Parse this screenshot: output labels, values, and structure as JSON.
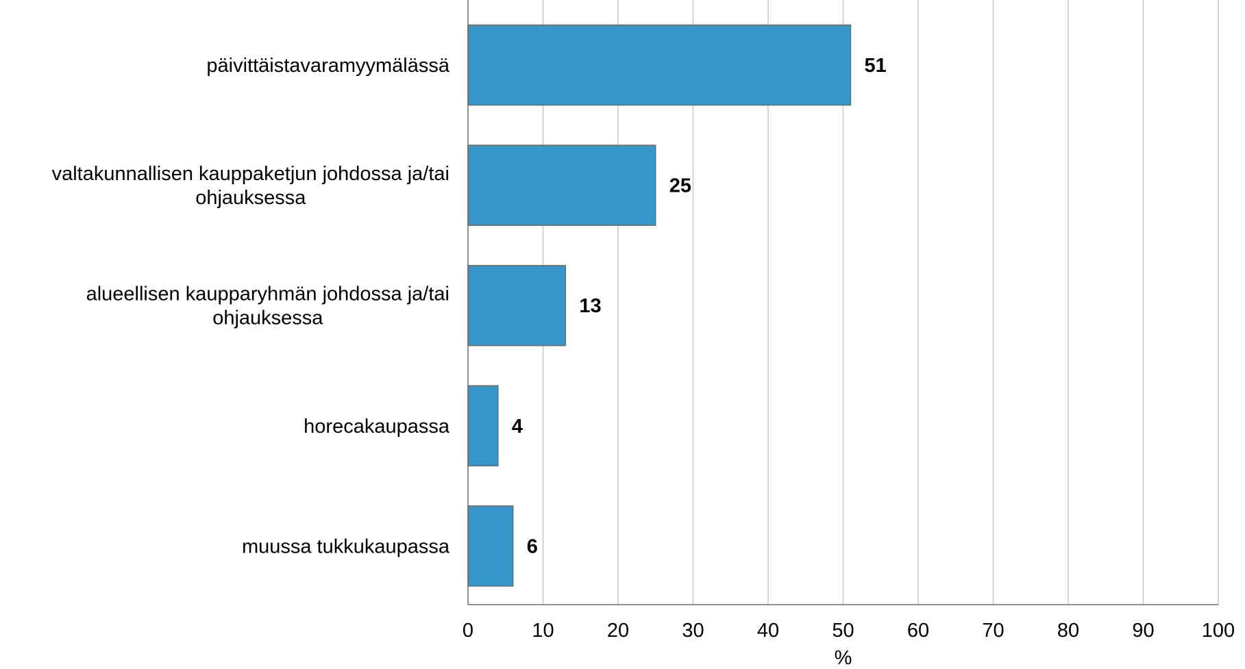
{
  "chart_data": {
    "type": "bar",
    "orientation": "horizontal",
    "categories": [
      [
        "päivittäistavaramyymälässä"
      ],
      [
        "valtakunnallisen kauppaketjun johdossa ja/tai",
        "ohjauksessa"
      ],
      [
        "alueellisen kaupparyhmän johdossa ja/tai",
        "ohjauksessa"
      ],
      [
        "horecakaupassa"
      ],
      [
        "muussa tukkukaupassa"
      ]
    ],
    "values": [
      51,
      25,
      13,
      4,
      6
    ],
    "data_labels": [
      "51",
      "25",
      "13",
      "4",
      "6"
    ],
    "xlabel": "%",
    "ylabel": "",
    "xlim": [
      0,
      100
    ],
    "x_ticks": [
      "0",
      "10",
      "20",
      "30",
      "40",
      "50",
      "60",
      "70",
      "80",
      "90",
      "100"
    ],
    "grid": "vertical",
    "legend": "none",
    "colors": {
      "bar": "#3597c9",
      "bar_border": "#6b6b6b",
      "grid": "#c8c8c8",
      "axis": "#6b6b6b"
    }
  }
}
